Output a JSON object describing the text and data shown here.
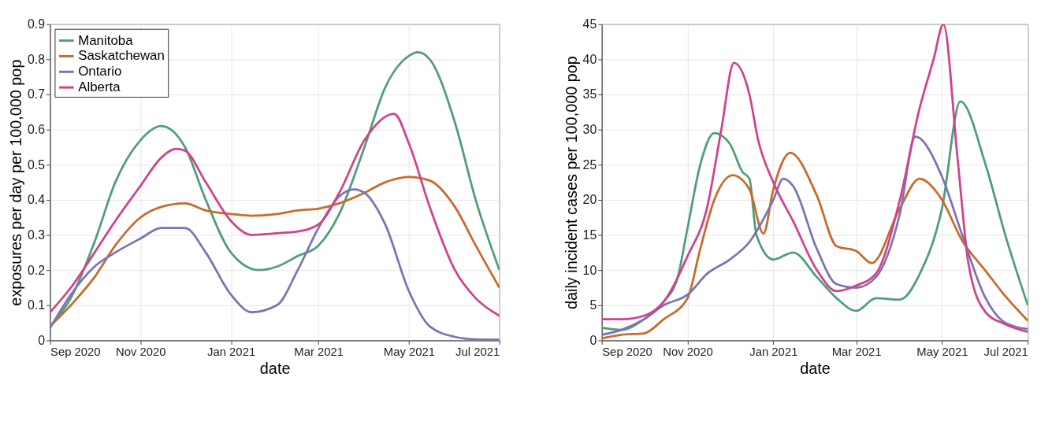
{
  "chart_data": [
    {
      "type": "line",
      "xlabel": "date",
      "ylabel": "exposures per day per 100,000 pop",
      "xlim": [
        "2020-09-01",
        "2021-07-01"
      ],
      "xticks": [
        {
          "value": "2020-09-01",
          "label": "Sep 2020"
        },
        {
          "value": "2020-11-01",
          "label": "Nov 2020"
        },
        {
          "value": "2021-01-01",
          "label": "Jan 2021"
        },
        {
          "value": "2021-03-01",
          "label": "Mar 2021"
        },
        {
          "value": "2021-05-01",
          "label": "May 2021"
        },
        {
          "value": "2021-07-01",
          "label": "Jul 2021"
        }
      ],
      "ylim": [
        0,
        0.9
      ],
      "yticks": [
        0,
        0.1,
        0.2,
        0.3,
        0.4,
        0.5,
        0.6,
        0.7,
        0.8,
        0.9
      ],
      "grid": true,
      "legend": "top left",
      "series": [
        {
          "name": "Manitoba",
          "color": "#4f9e7a",
          "x": [
            "2020-09-01",
            "2020-09-15",
            "2020-10-01",
            "2020-10-15",
            "2020-11-01",
            "2020-11-15",
            "2020-12-01",
            "2020-12-15",
            "2021-01-01",
            "2021-01-20",
            "2021-02-01",
            "2021-02-15",
            "2021-03-01",
            "2021-03-15",
            "2021-04-01",
            "2021-04-15",
            "2021-05-01",
            "2021-05-07",
            "2021-05-15",
            "2021-06-01",
            "2021-06-15",
            "2021-07-01"
          ],
          "values": [
            0.04,
            0.12,
            0.28,
            0.45,
            0.57,
            0.61,
            0.55,
            0.4,
            0.25,
            0.2,
            0.21,
            0.24,
            0.27,
            0.36,
            0.55,
            0.72,
            0.81,
            0.82,
            0.8,
            0.62,
            0.4,
            0.2
          ]
        },
        {
          "name": "Saskatchewan",
          "color": "#c96a2b",
          "x": [
            "2020-09-01",
            "2020-09-15",
            "2020-10-01",
            "2020-10-15",
            "2020-11-01",
            "2020-11-15",
            "2020-12-01",
            "2020-12-15",
            "2021-01-01",
            "2021-01-15",
            "2021-02-01",
            "2021-02-15",
            "2021-03-01",
            "2021-03-15",
            "2021-04-01",
            "2021-04-15",
            "2021-05-01",
            "2021-05-15",
            "2021-06-01",
            "2021-06-15",
            "2021-07-01"
          ],
          "values": [
            0.04,
            0.1,
            0.18,
            0.27,
            0.35,
            0.38,
            0.39,
            0.37,
            0.36,
            0.355,
            0.36,
            0.37,
            0.375,
            0.39,
            0.42,
            0.45,
            0.465,
            0.455,
            0.38,
            0.27,
            0.15
          ]
        },
        {
          "name": "Ontario",
          "color": "#7a74b5",
          "x": [
            "2020-09-01",
            "2020-09-15",
            "2020-10-01",
            "2020-10-15",
            "2020-11-01",
            "2020-11-15",
            "2020-12-01",
            "2020-12-15",
            "2021-01-01",
            "2021-01-15",
            "2021-02-01",
            "2021-02-15",
            "2021-03-01",
            "2021-03-15",
            "2021-03-25",
            "2021-04-01",
            "2021-04-15",
            "2021-05-01",
            "2021-05-15",
            "2021-06-01",
            "2021-06-15",
            "2021-07-01"
          ],
          "values": [
            0.035,
            0.13,
            0.21,
            0.25,
            0.29,
            0.32,
            0.32,
            0.25,
            0.13,
            0.08,
            0.1,
            0.2,
            0.32,
            0.41,
            0.43,
            0.42,
            0.33,
            0.14,
            0.04,
            0.01,
            0.003,
            0.002
          ]
        },
        {
          "name": "Alberta",
          "color": "#d1428b",
          "x": [
            "2020-09-01",
            "2020-09-15",
            "2020-10-01",
            "2020-10-15",
            "2020-11-01",
            "2020-11-15",
            "2020-11-25",
            "2020-12-01",
            "2020-12-15",
            "2021-01-01",
            "2021-01-15",
            "2021-02-01",
            "2021-02-15",
            "2021-03-01",
            "2021-03-15",
            "2021-04-01",
            "2021-04-21",
            "2021-05-01",
            "2021-05-15",
            "2021-06-01",
            "2021-06-15",
            "2021-07-01"
          ],
          "values": [
            0.08,
            0.15,
            0.25,
            0.34,
            0.44,
            0.52,
            0.545,
            0.54,
            0.45,
            0.34,
            0.3,
            0.305,
            0.31,
            0.33,
            0.42,
            0.57,
            0.645,
            0.56,
            0.38,
            0.2,
            0.12,
            0.07
          ]
        }
      ]
    },
    {
      "type": "line",
      "xlabel": "date",
      "ylabel": "daily incident cases per 100,000 pop",
      "xlim": [
        "2020-09-01",
        "2021-07-01"
      ],
      "xticks": [
        {
          "value": "2020-09-01",
          "label": "Sep 2020"
        },
        {
          "value": "2020-11-01",
          "label": "Nov 2020"
        },
        {
          "value": "2021-01-01",
          "label": "Jan 2021"
        },
        {
          "value": "2021-03-01",
          "label": "Mar 2021"
        },
        {
          "value": "2021-05-01",
          "label": "May 2021"
        },
        {
          "value": "2021-07-01",
          "label": "Jul 2021"
        }
      ],
      "ylim": [
        0,
        45
      ],
      "yticks": [
        0,
        5,
        10,
        15,
        20,
        25,
        30,
        35,
        40,
        45
      ],
      "grid": true,
      "series": [
        {
          "color": "#4f9e7a",
          "x": [
            "2020-09-01",
            "2020-09-15",
            "2020-10-01",
            "2020-10-15",
            "2020-10-25",
            "2020-11-01",
            "2020-11-10",
            "2020-11-20",
            "2020-12-01",
            "2020-12-10",
            "2020-12-15",
            "2020-12-20",
            "2021-01-01",
            "2021-01-15",
            "2021-02-01",
            "2021-02-15",
            "2021-03-01",
            "2021-03-15",
            "2021-04-01",
            "2021-04-15",
            "2021-05-01",
            "2021-05-14",
            "2021-06-01",
            "2021-06-15",
            "2021-07-01"
          ],
          "values": [
            1.8,
            1.5,
            3,
            5.5,
            9,
            16,
            25,
            29.5,
            28,
            24,
            23,
            15,
            11.5,
            12.5,
            9,
            6,
            4.2,
            6,
            5.8,
            9.4,
            18.8,
            34,
            25,
            15,
            5
          ]
        },
        {
          "color": "#c96a2b",
          "x": [
            "2020-09-01",
            "2020-09-15",
            "2020-10-01",
            "2020-10-15",
            "2020-11-01",
            "2020-11-10",
            "2020-11-20",
            "2020-12-03",
            "2020-12-15",
            "2020-12-25",
            "2021-01-01",
            "2021-01-13",
            "2021-02-01",
            "2021-02-15",
            "2021-03-01",
            "2021-03-12",
            "2021-04-01",
            "2021-04-15",
            "2021-05-01",
            "2021-05-15",
            "2021-06-01",
            "2021-06-15",
            "2021-07-01"
          ],
          "values": [
            0.3,
            0.8,
            1,
            3,
            6,
            13,
            20,
            23.5,
            21.5,
            15.2,
            21.5,
            26.7,
            20.6,
            13.4,
            12.7,
            11,
            18.8,
            23,
            20,
            14.3,
            9.9,
            6.3,
            2.8
          ]
        },
        {
          "color": "#7a74b5",
          "x": [
            "2020-09-01",
            "2020-09-15",
            "2020-10-01",
            "2020-10-15",
            "2020-11-01",
            "2020-11-15",
            "2020-12-01",
            "2020-12-15",
            "2021-01-01",
            "2021-01-08",
            "2021-01-15",
            "2021-02-01",
            "2021-02-15",
            "2021-03-01",
            "2021-03-15",
            "2021-04-01",
            "2021-04-12",
            "2021-05-01",
            "2021-05-15",
            "2021-06-01",
            "2021-06-15",
            "2021-07-01"
          ],
          "values": [
            0.8,
            1.5,
            3,
            5,
            6.5,
            9.5,
            11.5,
            14,
            20,
            23,
            22,
            13,
            8,
            7.5,
            9,
            18,
            29,
            23.3,
            15.2,
            6,
            2.5,
            1.6
          ]
        },
        {
          "color": "#d1428b",
          "x": [
            "2020-09-01",
            "2020-09-15",
            "2020-10-01",
            "2020-10-15",
            "2020-11-01",
            "2020-11-15",
            "2020-11-25",
            "2020-12-04",
            "2020-12-15",
            "2020-12-21",
            "2021-01-01",
            "2021-01-15",
            "2021-02-01",
            "2021-02-15",
            "2021-03-01",
            "2021-03-15",
            "2021-04-01",
            "2021-04-15",
            "2021-04-25",
            "2021-05-02",
            "2021-05-12",
            "2021-05-20",
            "2021-06-01",
            "2021-06-15",
            "2021-07-01"
          ],
          "values": [
            3,
            3,
            3.5,
            5.5,
            12,
            19,
            30,
            39.5,
            35,
            28.7,
            22.5,
            17,
            10,
            7,
            7.8,
            9.5,
            20,
            33,
            40,
            45,
            26,
            10.7,
            4,
            2.3,
            1.2
          ]
        }
      ]
    }
  ]
}
